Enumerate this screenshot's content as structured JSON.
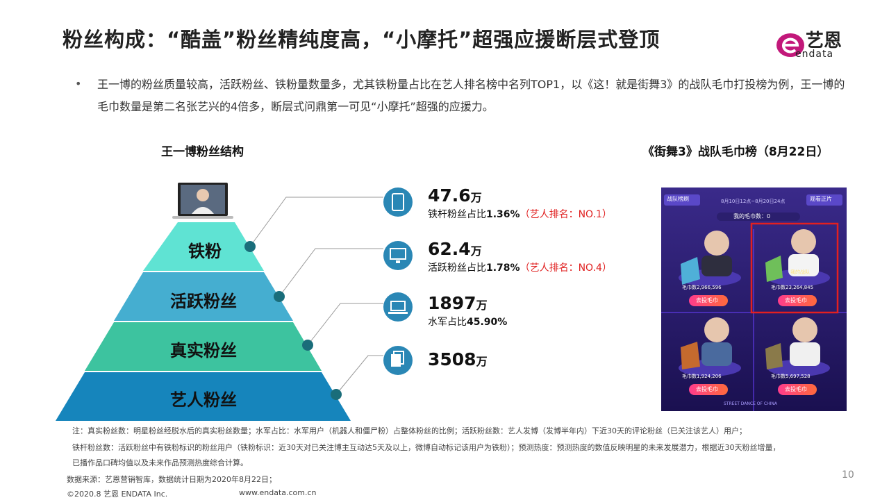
{
  "header": {
    "title": "粉丝构成：“酷盖”粉丝精纯度高，“小摩托”超强应援断层式登顶",
    "logo_cn": "艺恩",
    "logo_en": "endata"
  },
  "bullet": {
    "dot": "•",
    "text": "王一博的粉丝质量较高，活跃粉丝、铁粉量数量多，尤其铁粉量占比在艺人排名榜中名列TOP1，以《这！就是街舞3》的战队毛巾打投榜为例，王一博的毛巾数量是第二名张艺兴的4倍多，断层式问鼎第一可见“小摩托”超强的应援力。"
  },
  "left_title": "王一博粉丝结构",
  "right_title": "《街舞3》战队毛巾榜（8月22日）",
  "pyramid": {
    "layers": [
      {
        "label": "铁粉",
        "color": "#5fe3d3"
      },
      {
        "label": "活跃粉丝",
        "color": "#45aed0"
      },
      {
        "label": "真实粉丝",
        "color": "#3dc39f"
      },
      {
        "label": "艺人粉丝",
        "color": "#1685bc"
      }
    ]
  },
  "stats": [
    {
      "value": "47.6",
      "unit": "万",
      "desc_pre": "铁杆粉丝占比",
      "desc_bold": "1.36%",
      "desc_red": "（艺人排名：NO.1）",
      "icon": "tablet-icon"
    },
    {
      "value": "62.4",
      "unit": "万",
      "desc_pre": "活跃粉丝占比",
      "desc_bold": "1.78%",
      "desc_red": "（艺人排名：NO.4）",
      "icon": "monitor-icon"
    },
    {
      "value": "1897",
      "unit": "万",
      "desc_pre": "水军占比",
      "desc_bold": "45.90%",
      "desc_red": "",
      "icon": "laptop-icon"
    },
    {
      "value": "3508",
      "unit": "万",
      "desc_pre": "",
      "desc_bold": "",
      "desc_red": "",
      "icon": "documents-icon"
    }
  ],
  "screenshot": {
    "btn_left": "战队榜刷",
    "btn_right": "观看正片",
    "date_range": "8月10日12点~8月20日24点",
    "my_count": "我的毛巾数：0",
    "my_team": "我的战队",
    "cards": [
      {
        "count": "毛巾数2,966,596",
        "btn": "去投毛巾"
      },
      {
        "count": "毛巾数23,264,845",
        "btn": "去投毛巾"
      },
      {
        "count": "毛巾数1,924,206",
        "btn": "去投毛巾"
      },
      {
        "count": "毛巾数5,697,528",
        "btn": "去投毛巾"
      }
    ],
    "bottom": "STREET DANCE OF CHINA"
  },
  "notes": [
    "注：真实粉丝数：明星粉丝经脱水后的真实粉丝数量；水军占比：水军用户（机器人和僵尸粉）占整体粉丝的比例；活跃粉丝数：艺人发博（发博半年内）下近30天的评论粉丝（已关注该艺人）用户；",
    "铁杆粉丝数：活跃粉丝中有铁粉标识的粉丝用户（铁粉标识：近30天对已关注博主互动达5天及以上，微博自动标记该用户为铁粉）；预测热度：预测热度的数值反映明星的未来发展潜力，根据近30天粉丝增量，",
    "已播作品口碑均值以及未来作品预测热度综合计算。"
  ],
  "footer": {
    "source": "数据来源：艺恩营销智库，数据统计日期为2020年8月22日；",
    "copyright": "©2020.8 艺恩 ENDATA Inc.",
    "website": "www.endata.com.cn",
    "page": "10"
  },
  "colors": {
    "accent": "#c2187a",
    "line": "#999999",
    "dot": "#1a6d7a",
    "icon_circle": "#2a87b5",
    "red": "#e02020"
  }
}
